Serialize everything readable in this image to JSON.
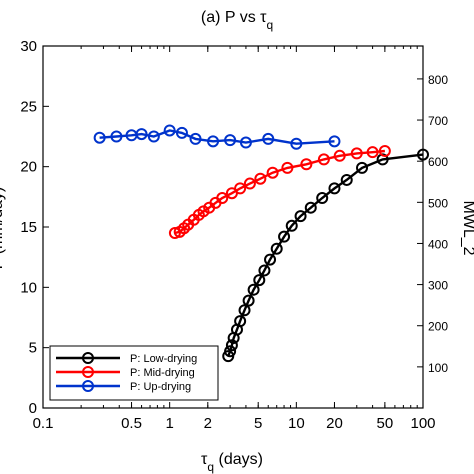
{
  "chart_data": {
    "type": "line",
    "title": "(a) P vs τ",
    "title_subscript": "q",
    "xlabel_symbol": "τ",
    "xlabel_subscript": "q",
    "xlabel_suffix": " (days)",
    "ylabel": "P (mm/day)",
    "ylabel_right": "MWL_2",
    "x_scale": "log",
    "xlim": [
      0.1,
      100
    ],
    "ylim": [
      0,
      30
    ],
    "ylim_right": [
      0,
      880
    ],
    "x_ticks": [
      0.1,
      0.5,
      1,
      2,
      5,
      10,
      20,
      50,
      100
    ],
    "x_tick_labels": [
      "0.1",
      "0.5",
      "1",
      "2",
      "5",
      "10",
      "20",
      "50",
      "100"
    ],
    "y_ticks": [
      0,
      5,
      10,
      15,
      20,
      25,
      30
    ],
    "y_tick_labels": [
      "0",
      "5",
      "10",
      "15",
      "20",
      "25",
      "30"
    ],
    "y_right_ticks": [
      100,
      200,
      300,
      400,
      500,
      600,
      700,
      800
    ],
    "y_right_tick_labels": [
      "100",
      "200",
      "300",
      "400",
      "500",
      "600",
      "700",
      "800"
    ],
    "grid": false,
    "legend_position": "bottom-left",
    "series": [
      {
        "name": "P: Low-drying",
        "color": "#000000",
        "x": [
          2.9,
          3.0,
          3.1,
          3.2,
          3.4,
          3.6,
          3.9,
          4.2,
          4.6,
          5.1,
          5.6,
          6.2,
          7.0,
          8.0,
          9.2,
          10.8,
          13.0,
          16.0,
          20.0,
          25.0,
          33.0,
          48.0,
          100.0
        ],
        "values": [
          4.3,
          4.7,
          5.2,
          5.8,
          6.5,
          7.2,
          8.1,
          8.9,
          9.8,
          10.6,
          11.4,
          12.3,
          13.2,
          14.2,
          15.1,
          15.9,
          16.6,
          17.4,
          18.2,
          18.9,
          19.9,
          20.6,
          21.0
        ]
      },
      {
        "name": "P: Mid-drying",
        "color": "#ff0000",
        "x": [
          1.1,
          1.2,
          1.3,
          1.4,
          1.55,
          1.7,
          1.85,
          2.05,
          2.3,
          2.6,
          3.1,
          3.6,
          4.3,
          5.2,
          6.5,
          8.5,
          12.0,
          16.5,
          22.0,
          30.0,
          40.0,
          50.0
        ],
        "values": [
          14.5,
          14.6,
          14.9,
          15.2,
          15.6,
          16.0,
          16.3,
          16.6,
          17.0,
          17.4,
          17.8,
          18.2,
          18.6,
          19.0,
          19.5,
          19.9,
          20.2,
          20.6,
          20.9,
          21.1,
          21.2,
          21.3
        ]
      },
      {
        "name": "P: Up-drying",
        "color": "#0033cc",
        "x": [
          0.28,
          0.38,
          0.5,
          0.6,
          0.75,
          1.0,
          1.25,
          1.6,
          2.2,
          3.0,
          4.0,
          6.0,
          10.0,
          20.0
        ],
        "values": [
          22.4,
          22.5,
          22.6,
          22.7,
          22.5,
          23.0,
          22.8,
          22.3,
          22.1,
          22.2,
          22.0,
          22.3,
          21.9,
          22.1
        ]
      }
    ]
  }
}
